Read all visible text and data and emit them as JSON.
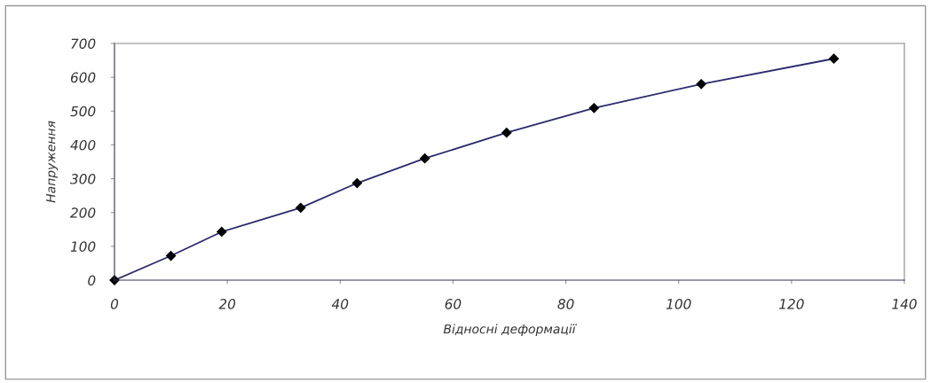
{
  "chart_data": {
    "type": "line",
    "xlabel": "Відносні деформації",
    "ylabel": "Напруження",
    "x": [
      0,
      10,
      19,
      33,
      43,
      55,
      69.5,
      85,
      104,
      127.5
    ],
    "series": [
      {
        "color": "#2a2a6e",
        "values": [
          0,
          72,
          143,
          214,
          287,
          360,
          436,
          509,
          580,
          655
        ]
      }
    ],
    "xlim": [
      0,
      140
    ],
    "xticks": [
      0,
      20,
      40,
      60,
      80,
      100,
      120,
      140
    ],
    "ylim": [
      0,
      700
    ],
    "yticks": [
      0,
      100,
      200,
      300,
      400,
      500,
      600,
      700
    ],
    "grid": false,
    "legend": false,
    "marker": "diamond",
    "line_style": "solid"
  }
}
